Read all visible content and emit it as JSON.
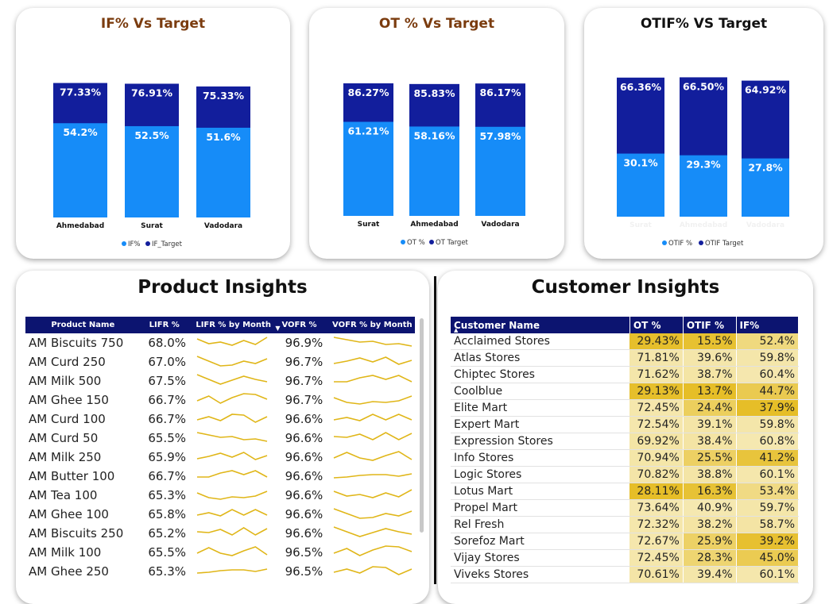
{
  "colors": {
    "target": "#121e9c",
    "actual": "#168cf8",
    "header": "#0c1470",
    "spark": "#e0b618",
    "title_brown": "#7b3c0f"
  },
  "charts": {
    "if_chart": {
      "title": "IF% Vs Target",
      "legend": [
        "IF%",
        "IF_Target"
      ],
      "categories": [
        "Ahmedabad",
        "Surat",
        "Vadodara"
      ],
      "target_labels": [
        "77.33%",
        "76.91%",
        "75.33%"
      ],
      "actual_labels": [
        "54.2%",
        "52.5%",
        "51.6%"
      ]
    },
    "ot_chart": {
      "title": "OT % Vs Target",
      "legend": [
        "OT %",
        "OT Target"
      ],
      "categories": [
        "Surat",
        "Ahmedabad",
        "Vadodara"
      ],
      "target_labels": [
        "86.27%",
        "85.83%",
        "86.17%"
      ],
      "actual_labels": [
        "61.21%",
        "58.16%",
        "57.98%"
      ]
    },
    "otif_chart": {
      "title": "OTIF% VS Target",
      "legend": [
        "OTIF %",
        "OTIF Target"
      ],
      "categories": [
        "Surat",
        "Ahmedabad",
        "Vadodara"
      ],
      "target_labels": [
        "66.36%",
        "66.50%",
        "64.92%"
      ],
      "actual_labels": [
        "30.1%",
        "29.3%",
        "27.8%"
      ]
    }
  },
  "chart_data": [
    {
      "type": "bar",
      "title": "IF% Vs Target",
      "categories": [
        "Ahmedabad",
        "Surat",
        "Vadodara"
      ],
      "series": [
        {
          "name": "IF%",
          "values": [
            54.2,
            52.5,
            51.6
          ]
        },
        {
          "name": "IF_Target",
          "values": [
            77.33,
            76.91,
            75.33
          ]
        }
      ]
    },
    {
      "type": "bar",
      "title": "OT % Vs Target",
      "categories": [
        "Surat",
        "Ahmedabad",
        "Vadodara"
      ],
      "series": [
        {
          "name": "OT %",
          "values": [
            61.21,
            58.16,
            57.98
          ]
        },
        {
          "name": "OT Target",
          "values": [
            86.27,
            85.83,
            86.17
          ]
        }
      ]
    },
    {
      "type": "bar",
      "title": "OTIF% VS Target",
      "categories": [
        "Surat",
        "Ahmedabad",
        "Vadodara"
      ],
      "series": [
        {
          "name": "OTIF %",
          "values": [
            30.1,
            29.3,
            27.8
          ]
        },
        {
          "name": "OTIF Target",
          "values": [
            66.36,
            66.5,
            64.92
          ]
        }
      ]
    }
  ],
  "product_insights": {
    "title": "Product Insights",
    "headers": [
      "Product Name",
      "LIFR %",
      "LIFR % by Month",
      "VOFR %",
      "VOFR % by Month"
    ],
    "rows": [
      {
        "name": "AM Biscuits 750",
        "lifr": "68.0%",
        "vofr": "96.9%"
      },
      {
        "name": "AM Curd 250",
        "lifr": "67.0%",
        "vofr": "96.7%"
      },
      {
        "name": "AM Milk 500",
        "lifr": "67.5%",
        "vofr": "96.7%"
      },
      {
        "name": "AM Ghee 150",
        "lifr": "66.7%",
        "vofr": "96.7%"
      },
      {
        "name": "AM Curd 100",
        "lifr": "66.7%",
        "vofr": "96.6%"
      },
      {
        "name": "AM Curd 50",
        "lifr": "65.5%",
        "vofr": "96.6%"
      },
      {
        "name": "AM Milk 250",
        "lifr": "65.9%",
        "vofr": "96.6%"
      },
      {
        "name": "AM Butter 100",
        "lifr": "66.7%",
        "vofr": "96.6%"
      },
      {
        "name": "AM Tea 100",
        "lifr": "65.3%",
        "vofr": "96.6%"
      },
      {
        "name": "AM Ghee 100",
        "lifr": "65.8%",
        "vofr": "96.6%"
      },
      {
        "name": "AM Biscuits 250",
        "lifr": "65.2%",
        "vofr": "96.6%"
      },
      {
        "name": "AM Milk 100",
        "lifr": "65.5%",
        "vofr": "96.5%"
      },
      {
        "name": "AM Ghee 250",
        "lifr": "65.3%",
        "vofr": "96.5%"
      }
    ]
  },
  "customer_insights": {
    "title": "Customer Insights",
    "headers": [
      "Customer Name",
      "OT %",
      "OTIF %",
      "IF%"
    ],
    "rows": [
      {
        "name": "Acclaimed Stores",
        "ot": "29.43%",
        "otif": "15.5%",
        "if": "52.4%"
      },
      {
        "name": "Atlas Stores",
        "ot": "71.81%",
        "otif": "39.6%",
        "if": "59.8%"
      },
      {
        "name": "Chiptec Stores",
        "ot": "71.62%",
        "otif": "38.7%",
        "if": "60.4%"
      },
      {
        "name": "Coolblue",
        "ot": "29.13%",
        "otif": "13.7%",
        "if": "44.7%"
      },
      {
        "name": "Elite Mart",
        "ot": "72.45%",
        "otif": "24.4%",
        "if": "37.9%"
      },
      {
        "name": "Expert Mart",
        "ot": "72.54%",
        "otif": "39.1%",
        "if": "59.8%"
      },
      {
        "name": "Expression Stores",
        "ot": "69.92%",
        "otif": "38.4%",
        "if": "60.8%"
      },
      {
        "name": "Info Stores",
        "ot": "70.94%",
        "otif": "25.5%",
        "if": "41.2%"
      },
      {
        "name": "Logic Stores",
        "ot": "70.82%",
        "otif": "38.8%",
        "if": "60.1%"
      },
      {
        "name": "Lotus Mart",
        "ot": "28.11%",
        "otif": "16.3%",
        "if": "53.4%"
      },
      {
        "name": "Propel Mart",
        "ot": "73.64%",
        "otif": "40.9%",
        "if": "59.7%"
      },
      {
        "name": "Rel Fresh",
        "ot": "72.32%",
        "otif": "38.2%",
        "if": "58.7%"
      },
      {
        "name": "Sorefoz Mart",
        "ot": "72.67%",
        "otif": "25.9%",
        "if": "39.2%"
      },
      {
        "name": "Vijay Stores",
        "ot": "72.45%",
        "otif": "28.3%",
        "if": "45.0%"
      },
      {
        "name": "Viveks Stores",
        "ot": "70.61%",
        "otif": "39.4%",
        "if": "60.1%"
      }
    ]
  }
}
